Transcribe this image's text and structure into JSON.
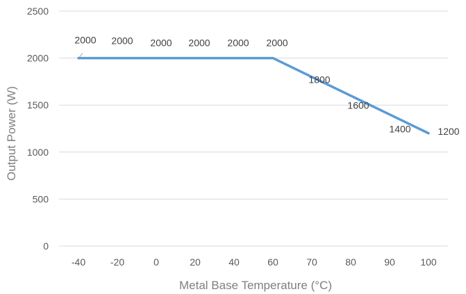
{
  "chart_data": {
    "type": "line",
    "title": "",
    "xlabel": "Metal Base Temperature (°C)",
    "ylabel": "Output Power (W)",
    "categories": [
      "-40",
      "-20",
      "0",
      "20",
      "40",
      "60",
      "70",
      "80",
      "90",
      "100"
    ],
    "series": [
      {
        "values": [
          2000,
          2000,
          2000,
          2000,
          2000,
          2000,
          1800,
          1600,
          1400,
          1200
        ],
        "color": "#5b9bd5"
      }
    ],
    "data_labels": [
      "2000",
      "2000",
      "2000",
      "2000",
      "2000",
      "2000",
      "1800",
      "1600",
      "1400",
      "1200"
    ],
    "yticks": [
      "0",
      "500",
      "1000",
      "1500",
      "2000",
      "2500"
    ],
    "ylim": [
      0,
      2500
    ],
    "grid": "horizontal",
    "legend": "none"
  }
}
